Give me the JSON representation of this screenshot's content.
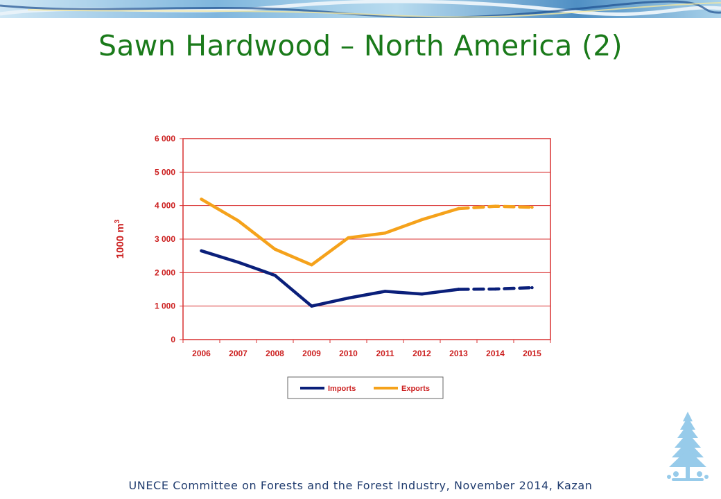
{
  "slide": {
    "title": "Sawn Hardwood – North America (2)",
    "footer": "UNECE Committee on Forests and the Forest Industry, November 2014, Kazan"
  },
  "colors": {
    "title": "#1a7a1a",
    "axis_text": "#cc1f1f",
    "grid": "#d93030",
    "imports": "#0a1f7a",
    "exports": "#f5a21b",
    "footer": "#1f3b6e"
  },
  "chart_data": {
    "type": "line",
    "title": "",
    "xlabel": "",
    "ylabel": "1000 m",
    "ylabel_superscript": "3",
    "categories": [
      "2006",
      "2007",
      "2008",
      "2009",
      "2010",
      "2011",
      "2012",
      "2013",
      "2014",
      "2015"
    ],
    "yticks": [
      "0",
      "1 000",
      "2 000",
      "3 000",
      "4 000",
      "5 000",
      "6 000"
    ],
    "ylim": [
      0,
      6000
    ],
    "grid": true,
    "legend_position": "bottom",
    "forecast_from": "2013",
    "series": [
      {
        "name": "Imports",
        "color": "#0a1f7a",
        "values": [
          2650,
          2310,
          1920,
          1000,
          1240,
          1440,
          1360,
          1500,
          1510,
          1550
        ]
      },
      {
        "name": "Exports",
        "color": "#f5a21b",
        "values": [
          4190,
          3550,
          2700,
          2230,
          3040,
          3180,
          3580,
          3910,
          3980,
          3950
        ]
      }
    ]
  }
}
